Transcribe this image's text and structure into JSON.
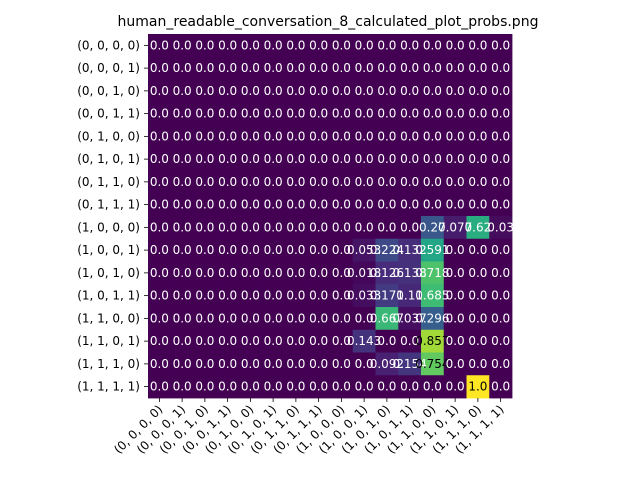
{
  "chart_data": {
    "type": "heatmap",
    "title": "human_readable_conversation_8_calculated_plot_probs.png",
    "xlabel": "",
    "ylabel": "",
    "x_categories": [
      "(0, 0, 0, 0)",
      "(0, 0, 0, 1)",
      "(0, 0, 1, 0)",
      "(0, 0, 1, 1)",
      "(0, 1, 0, 0)",
      "(0, 1, 0, 1)",
      "(0, 1, 1, 0)",
      "(0, 1, 1, 1)",
      "(1, 0, 0, 0)",
      "(1, 0, 0, 1)",
      "(1, 0, 1, 0)",
      "(1, 0, 1, 1)",
      "(1, 1, 0, 0)",
      "(1, 1, 0, 1)",
      "(1, 1, 1, 0)",
      "(1, 1, 1, 1)"
    ],
    "y_categories": [
      "(0, 0, 0, 0)",
      "(0, 0, 0, 1)",
      "(0, 0, 1, 0)",
      "(0, 0, 1, 1)",
      "(0, 1, 0, 0)",
      "(0, 1, 0, 1)",
      "(0, 1, 1, 0)",
      "(0, 1, 1, 1)",
      "(1, 0, 0, 0)",
      "(1, 0, 0, 1)",
      "(1, 0, 1, 0)",
      "(1, 0, 1, 1)",
      "(1, 1, 0, 0)",
      "(1, 1, 0, 1)",
      "(1, 1, 1, 0)",
      "(1, 1, 1, 1)"
    ],
    "colormap": "viridis",
    "vmin": 0,
    "vmax": 1,
    "values": [
      [
        0,
        0,
        0,
        0,
        0,
        0,
        0,
        0,
        0,
        0,
        0,
        0,
        0,
        0,
        0,
        0
      ],
      [
        0,
        0,
        0,
        0,
        0,
        0,
        0,
        0,
        0,
        0,
        0,
        0,
        0,
        0,
        0,
        0
      ],
      [
        0,
        0,
        0,
        0,
        0,
        0,
        0,
        0,
        0,
        0,
        0,
        0,
        0,
        0,
        0,
        0
      ],
      [
        0,
        0,
        0,
        0,
        0,
        0,
        0,
        0,
        0,
        0,
        0,
        0,
        0,
        0,
        0,
        0
      ],
      [
        0,
        0,
        0,
        0,
        0,
        0,
        0,
        0,
        0,
        0,
        0,
        0,
        0,
        0,
        0,
        0
      ],
      [
        0,
        0,
        0,
        0,
        0,
        0,
        0,
        0,
        0,
        0,
        0,
        0,
        0,
        0,
        0,
        0
      ],
      [
        0,
        0,
        0,
        0,
        0,
        0,
        0,
        0,
        0,
        0,
        0,
        0,
        0,
        0,
        0,
        0
      ],
      [
        0,
        0,
        0,
        0,
        0,
        0,
        0,
        0,
        0,
        0,
        0,
        0,
        0,
        0,
        0,
        0
      ],
      [
        0,
        0,
        0,
        0,
        0,
        0,
        0,
        0,
        0,
        0,
        0,
        0,
        0.27,
        0.077,
        0.62,
        0.03
      ],
      [
        0,
        0,
        0,
        0,
        0,
        0,
        0,
        0,
        0,
        0.053,
        0.224,
        0.132,
        0.591,
        0,
        0,
        0
      ],
      [
        0,
        0,
        0,
        0,
        0,
        0,
        0,
        0,
        0,
        0.018,
        0.126,
        0.138,
        0.718,
        0,
        0,
        0
      ],
      [
        0,
        0,
        0,
        0,
        0,
        0,
        0,
        0,
        0,
        0.033,
        0.171,
        0.11,
        0.685,
        0,
        0,
        0
      ],
      [
        0,
        0,
        0,
        0,
        0,
        0,
        0,
        0,
        0,
        0,
        0.667,
        0.037,
        0.296,
        0,
        0,
        0
      ],
      [
        0,
        0,
        0,
        0,
        0,
        0,
        0,
        0,
        0,
        0.143,
        0,
        0,
        0.857,
        0,
        0,
        0
      ],
      [
        0,
        0,
        0,
        0,
        0,
        0,
        0,
        0,
        0,
        0,
        0.092,
        0.154,
        0.754,
        0,
        0,
        0
      ],
      [
        0,
        0,
        0,
        0,
        0,
        0,
        0,
        0,
        0,
        0,
        0,
        0,
        0,
        0,
        1.0,
        0
      ]
    ],
    "labels": [
      [
        "0.0",
        "0.0",
        "0.0",
        "0.0",
        "0.0",
        "0.0",
        "0.0",
        "0.0",
        "0.0",
        "0.0",
        "0.0",
        "0.0",
        "0.0",
        "0.0",
        "0.0",
        "0.0"
      ],
      [
        "0.0",
        "0.0",
        "0.0",
        "0.0",
        "0.0",
        "0.0",
        "0.0",
        "0.0",
        "0.0",
        "0.0",
        "0.0",
        "0.0",
        "0.0",
        "0.0",
        "0.0",
        "0.0"
      ],
      [
        "0.0",
        "0.0",
        "0.0",
        "0.0",
        "0.0",
        "0.0",
        "0.0",
        "0.0",
        "0.0",
        "0.0",
        "0.0",
        "0.0",
        "0.0",
        "0.0",
        "0.0",
        "0.0"
      ],
      [
        "0.0",
        "0.0",
        "0.0",
        "0.0",
        "0.0",
        "0.0",
        "0.0",
        "0.0",
        "0.0",
        "0.0",
        "0.0",
        "0.0",
        "0.0",
        "0.0",
        "0.0",
        "0.0"
      ],
      [
        "0.0",
        "0.0",
        "0.0",
        "0.0",
        "0.0",
        "0.0",
        "0.0",
        "0.0",
        "0.0",
        "0.0",
        "0.0",
        "0.0",
        "0.0",
        "0.0",
        "0.0",
        "0.0"
      ],
      [
        "0.0",
        "0.0",
        "0.0",
        "0.0",
        "0.0",
        "0.0",
        "0.0",
        "0.0",
        "0.0",
        "0.0",
        "0.0",
        "0.0",
        "0.0",
        "0.0",
        "0.0",
        "0.0"
      ],
      [
        "0.0",
        "0.0",
        "0.0",
        "0.0",
        "0.0",
        "0.0",
        "0.0",
        "0.0",
        "0.0",
        "0.0",
        "0.0",
        "0.0",
        "0.0",
        "0.0",
        "0.0",
        "0.0"
      ],
      [
        "0.0",
        "0.0",
        "0.0",
        "0.0",
        "0.0",
        "0.0",
        "0.0",
        "0.0",
        "0.0",
        "0.0",
        "0.0",
        "0.0",
        "0.0",
        "0.0",
        "0.0",
        "0.0"
      ],
      [
        "0.0",
        "0.0",
        "0.0",
        "0.0",
        "0.0",
        "0.0",
        "0.0",
        "0.0",
        "0.0",
        "0.0",
        "0.0",
        "0.0",
        "0.27",
        "0.077",
        "0.62",
        "0.03"
      ],
      [
        "0.0",
        "0.0",
        "0.0",
        "0.0",
        "0.0",
        "0.0",
        "0.0",
        "0.0",
        "0.0",
        "0.053",
        "0.224",
        "0.132",
        "0.591",
        "0.0",
        "0.0",
        "0.0"
      ],
      [
        "0.0",
        "0.0",
        "0.0",
        "0.0",
        "0.0",
        "0.0",
        "0.0",
        "0.0",
        "0.0",
        "0.018",
        "0.126",
        "0.138",
        "0.718",
        "0.0",
        "0.0",
        "0.0"
      ],
      [
        "0.0",
        "0.0",
        "0.0",
        "0.0",
        "0.0",
        "0.0",
        "0.0",
        "0.0",
        "0.0",
        "0.033",
        "0.171",
        "0.11",
        "0.685",
        "0.0",
        "0.0",
        "0.0"
      ],
      [
        "0.0",
        "0.0",
        "0.0",
        "0.0",
        "0.0",
        "0.0",
        "0.0",
        "0.0",
        "0.0",
        "0.0",
        "0.667",
        "0.037",
        "0.296",
        "0.0",
        "0.0",
        "0.0"
      ],
      [
        "0.0",
        "0.0",
        "0.0",
        "0.0",
        "0.0",
        "0.0",
        "0.0",
        "0.0",
        "0.0",
        "0.143",
        "0.0",
        "0.0",
        "0.857",
        "0.0",
        "0.0",
        "0.0"
      ],
      [
        "0.0",
        "0.0",
        "0.0",
        "0.0",
        "0.0",
        "0.0",
        "0.0",
        "0.0",
        "0.0",
        "0.0",
        "0.092",
        "0.154",
        "0.754",
        "0.0",
        "0.0",
        "0.0"
      ],
      [
        "0.0",
        "0.0",
        "0.0",
        "0.0",
        "0.0",
        "0.0",
        "0.0",
        "0.0",
        "0.0",
        "0.0",
        "0.0",
        "0.0",
        "0.0",
        "0.0",
        "1.0",
        "0.0"
      ]
    ]
  }
}
